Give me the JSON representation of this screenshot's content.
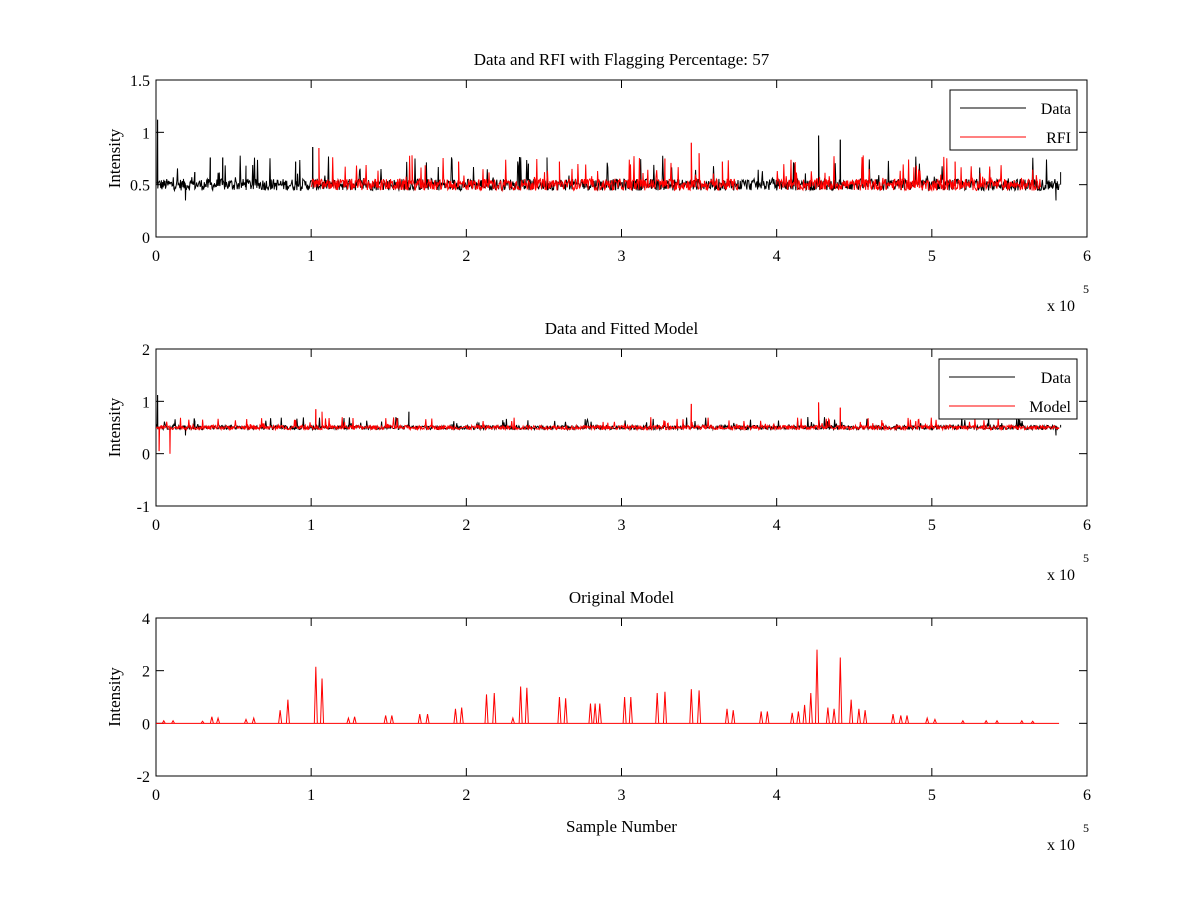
{
  "chart_data": [
    {
      "type": "line",
      "title": "Data and RFI with Flagging Percentage: 57",
      "xlabel": "",
      "ylabel": "Intensity",
      "xlim": [
        0,
        6
      ],
      "ylim": [
        0,
        1.5
      ],
      "xticks": [
        "0",
        "1",
        "2",
        "3",
        "4",
        "5",
        "6"
      ],
      "yticks": [
        "0",
        "0.5",
        "1",
        "1.5"
      ],
      "x_multiplier": {
        "base": "x 10",
        "exponent": "5"
      },
      "grid": false,
      "legend": {
        "placement": "top-right",
        "entries": [
          {
            "label": "Data",
            "color": "#000000"
          },
          {
            "label": "RFI",
            "color": "#ff0000"
          }
        ]
      },
      "series": [
        {
          "name": "Data",
          "color": "#000000",
          "x_range": [
            0,
            5.82
          ],
          "baseline": 0.5,
          "features": [
            {
              "x": 0.01,
              "y": 1.12
            },
            {
              "x": 0.035,
              "y": 0.48
            },
            {
              "x": 0.19,
              "y": 0.35
            },
            {
              "x": 0.25,
              "y": 0.62
            },
            {
              "x": 0.35,
              "y": 0.76
            },
            {
              "x": 0.43,
              "y": 0.76
            },
            {
              "x": 0.58,
              "y": 0.68
            },
            {
              "x": 0.9,
              "y": 0.72
            },
            {
              "x": 1.01,
              "y": 0.86
            },
            {
              "x": 2.4,
              "y": 0.7
            },
            {
              "x": 2.52,
              "y": 0.76
            },
            {
              "x": 4.27,
              "y": 0.97
            },
            {
              "x": 4.41,
              "y": 0.93
            },
            {
              "x": 5.8,
              "y": 0.35
            },
            {
              "x": 5.83,
              "y": 0.62
            }
          ]
        },
        {
          "name": "RFI",
          "color": "#ff0000",
          "x_ranges": [
            [
              1.0,
              3.75
            ],
            [
              4.0,
              5.7
            ]
          ],
          "baseline": 0.5,
          "features": [
            {
              "x": 1.05,
              "y": 0.85
            },
            {
              "x": 1.65,
              "y": 0.78
            },
            {
              "x": 1.95,
              "y": 0.72
            },
            {
              "x": 2.6,
              "y": 0.72
            },
            {
              "x": 3.28,
              "y": 0.75
            },
            {
              "x": 3.45,
              "y": 0.9
            },
            {
              "x": 3.5,
              "y": 0.8
            },
            {
              "x": 3.65,
              "y": 0.72
            },
            {
              "x": 4.9,
              "y": 0.68
            },
            {
              "x": 5.15,
              "y": 0.72
            }
          ]
        }
      ]
    },
    {
      "type": "line",
      "title": "Data and Fitted Model",
      "xlabel": "",
      "ylabel": "Intensity",
      "xlim": [
        0,
        6
      ],
      "ylim": [
        -1,
        2
      ],
      "xticks": [
        "0",
        "1",
        "2",
        "3",
        "4",
        "5",
        "6"
      ],
      "yticks": [
        "-1",
        "0",
        "1",
        "2"
      ],
      "x_multiplier": {
        "base": "x 10",
        "exponent": "5"
      },
      "grid": false,
      "legend": {
        "placement": "top-right",
        "entries": [
          {
            "label": "Data",
            "color": "#000000"
          },
          {
            "label": "Model",
            "color": "#ff0000"
          }
        ]
      },
      "series": [
        {
          "name": "Data",
          "color": "#000000",
          "x_range": [
            0,
            5.82
          ],
          "baseline": 0.5,
          "features": [
            {
              "x": 0.01,
              "y": 1.12
            },
            {
              "x": 0.19,
              "y": 0.35
            },
            {
              "x": 0.25,
              "y": 0.62
            },
            {
              "x": 1.63,
              "y": 0.8
            },
            {
              "x": 5.8,
              "y": 0.35
            },
            {
              "x": 5.83,
              "y": 0.55
            }
          ]
        },
        {
          "name": "Model",
          "color": "#ff0000",
          "x_range": [
            0,
            5.82
          ],
          "baseline": 0.5,
          "features": [
            {
              "x": 0.02,
              "y": 0.05
            },
            {
              "x": 0.09,
              "y": 0.0
            },
            {
              "x": 0.1,
              "y": 0.5
            },
            {
              "x": 1.03,
              "y": 0.85
            },
            {
              "x": 1.07,
              "y": 0.8
            },
            {
              "x": 3.45,
              "y": 0.95
            },
            {
              "x": 4.27,
              "y": 0.98
            },
            {
              "x": 4.41,
              "y": 0.88
            }
          ]
        }
      ]
    },
    {
      "type": "line",
      "title": "Original Model",
      "xlabel": "Sample Number",
      "ylabel": "Intensity",
      "xlim": [
        0,
        6
      ],
      "ylim": [
        -2,
        4
      ],
      "xticks": [
        "0",
        "1",
        "2",
        "3",
        "4",
        "5",
        "6"
      ],
      "yticks": [
        "-2",
        "0",
        "2",
        "4"
      ],
      "x_multiplier": {
        "base": "x 10",
        "exponent": "5"
      },
      "grid": false,
      "series": [
        {
          "color": "#ff0000",
          "x_range": [
            0,
            5.82
          ],
          "baseline": 0,
          "spikes": [
            {
              "x": 0.05,
              "y": 0.1
            },
            {
              "x": 0.11,
              "y": 0.1
            },
            {
              "x": 0.3,
              "y": 0.08
            },
            {
              "x": 0.36,
              "y": 0.25
            },
            {
              "x": 0.4,
              "y": 0.2
            },
            {
              "x": 0.58,
              "y": 0.15
            },
            {
              "x": 0.63,
              "y": 0.2
            },
            {
              "x": 0.8,
              "y": 0.5
            },
            {
              "x": 0.85,
              "y": 0.9
            },
            {
              "x": 1.03,
              "y": 2.15
            },
            {
              "x": 1.07,
              "y": 1.7
            },
            {
              "x": 1.24,
              "y": 0.2
            },
            {
              "x": 1.28,
              "y": 0.25
            },
            {
              "x": 1.48,
              "y": 0.3
            },
            {
              "x": 1.52,
              "y": 0.3
            },
            {
              "x": 1.7,
              "y": 0.35
            },
            {
              "x": 1.75,
              "y": 0.35
            },
            {
              "x": 1.93,
              "y": 0.55
            },
            {
              "x": 1.97,
              "y": 0.6
            },
            {
              "x": 2.13,
              "y": 1.1
            },
            {
              "x": 2.18,
              "y": 1.15
            },
            {
              "x": 2.3,
              "y": 0.2
            },
            {
              "x": 2.35,
              "y": 1.4
            },
            {
              "x": 2.39,
              "y": 1.35
            },
            {
              "x": 2.6,
              "y": 1.0
            },
            {
              "x": 2.64,
              "y": 0.95
            },
            {
              "x": 2.8,
              "y": 0.75
            },
            {
              "x": 2.83,
              "y": 0.75
            },
            {
              "x": 2.86,
              "y": 0.75
            },
            {
              "x": 3.02,
              "y": 1.0
            },
            {
              "x": 3.06,
              "y": 1.0
            },
            {
              "x": 3.23,
              "y": 1.15
            },
            {
              "x": 3.28,
              "y": 1.2
            },
            {
              "x": 3.45,
              "y": 1.3
            },
            {
              "x": 3.5,
              "y": 1.25
            },
            {
              "x": 3.68,
              "y": 0.55
            },
            {
              "x": 3.72,
              "y": 0.5
            },
            {
              "x": 3.9,
              "y": 0.45
            },
            {
              "x": 3.94,
              "y": 0.45
            },
            {
              "x": 4.1,
              "y": 0.4
            },
            {
              "x": 4.14,
              "y": 0.45
            },
            {
              "x": 4.18,
              "y": 0.7
            },
            {
              "x": 4.22,
              "y": 1.15
            },
            {
              "x": 4.26,
              "y": 2.8
            },
            {
              "x": 4.33,
              "y": 0.6
            },
            {
              "x": 4.37,
              "y": 0.55
            },
            {
              "x": 4.41,
              "y": 2.5
            },
            {
              "x": 4.48,
              "y": 0.9
            },
            {
              "x": 4.53,
              "y": 0.55
            },
            {
              "x": 4.57,
              "y": 0.5
            },
            {
              "x": 4.75,
              "y": 0.35
            },
            {
              "x": 4.8,
              "y": 0.3
            },
            {
              "x": 4.84,
              "y": 0.3
            },
            {
              "x": 4.97,
              "y": 0.2
            },
            {
              "x": 5.02,
              "y": 0.15
            },
            {
              "x": 5.2,
              "y": 0.1
            },
            {
              "x": 5.35,
              "y": 0.1
            },
            {
              "x": 5.42,
              "y": 0.1
            },
            {
              "x": 5.58,
              "y": 0.1
            },
            {
              "x": 5.65,
              "y": 0.08
            }
          ]
        }
      ]
    }
  ]
}
